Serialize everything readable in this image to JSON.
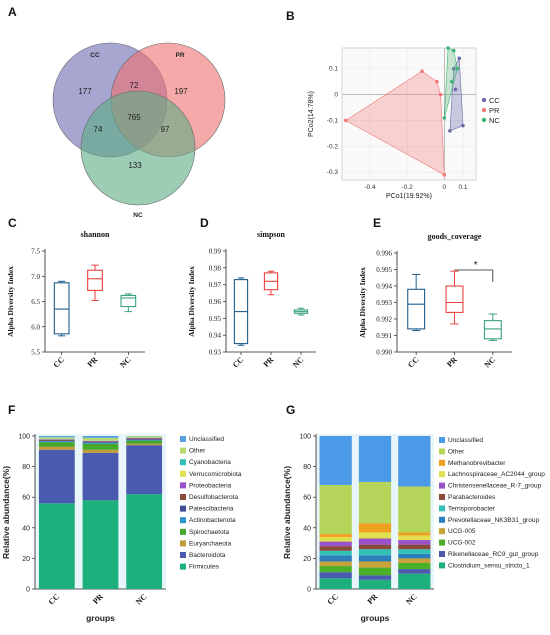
{
  "panel_labels": [
    "A",
    "B",
    "C",
    "D",
    "E",
    "F",
    "G"
  ],
  "chart_data": [
    {
      "type": "venn",
      "panel": "A",
      "sets": [
        {
          "name": "CC",
          "color": "#6b6bb0"
        },
        {
          "name": "PR",
          "color": "#f07070"
        },
        {
          "name": "NC",
          "color": "#5cae84"
        }
      ],
      "regions": {
        "CC_only": "177",
        "PR_only": "197",
        "NC_only": "133",
        "CC_PR": "72",
        "CC_NC": "74",
        "PR_NC": "97",
        "CC_PR_NC": "765"
      }
    },
    {
      "type": "scatter",
      "panel": "B",
      "xlabel": "PCo1(19.92%)",
      "ylabel": "PCo2(14.78%)",
      "xlim": [
        -0.55,
        0.17
      ],
      "ylim": [
        -0.33,
        0.18
      ],
      "xticks": [
        "-0.4",
        "-0.2",
        "0",
        "0.1"
      ],
      "xtick_values": [
        -0.4,
        -0.2,
        0,
        0.1
      ],
      "yticks": [
        "0.1",
        "0",
        "-0.1",
        "-0.2",
        "-0.3"
      ],
      "ytick_values": [
        0.1,
        0,
        -0.1,
        -0.2,
        -0.3
      ],
      "series": [
        {
          "name": "CC",
          "color": "#6a6aa8",
          "fill": "#6a6aa8",
          "points": [
            [
              0.03,
              -0.14
            ],
            [
              0.1,
              -0.12
            ],
            [
              0.08,
              0.14
            ],
            [
              0.06,
              0.02
            ],
            [
              0.05,
              0.1
            ]
          ]
        },
        {
          "name": "PR",
          "color": "#f07878",
          "fill": "#f08080",
          "points": [
            [
              -0.53,
              -0.1
            ],
            [
              -0.12,
              0.09
            ],
            [
              -0.04,
              0.05
            ],
            [
              -0.02,
              0.0
            ],
            [
              0.0,
              -0.31
            ]
          ]
        },
        {
          "name": "NC",
          "color": "#3cb371",
          "fill": "#66bb88",
          "points": [
            [
              0.02,
              0.18
            ],
            [
              0.05,
              0.17
            ],
            [
              0.0,
              -0.09
            ],
            [
              0.07,
              0.1
            ],
            [
              0.04,
              0.05
            ]
          ]
        }
      ]
    },
    {
      "type": "box",
      "panel": "C",
      "title": "shannon",
      "ylabel": "Alpha Diversity Index",
      "ylim": [
        5.5,
        7.5
      ],
      "yticks": [
        "5.5",
        "6.0",
        "6.5",
        "7.0",
        "7.5"
      ],
      "ytick_values": [
        5.5,
        6.0,
        6.5,
        7.0,
        7.5
      ],
      "categories": [
        "CC",
        "PR",
        "NC"
      ],
      "boxes": [
        {
          "name": "CC",
          "color": "#1f5f8b",
          "min": 5.82,
          "q1": 5.86,
          "median": 6.35,
          "q3": 6.87,
          "max": 6.9
        },
        {
          "name": "PR",
          "color": "#e84040",
          "min": 6.52,
          "q1": 6.72,
          "median": 6.95,
          "q3": 7.12,
          "max": 7.22
        },
        {
          "name": "NC",
          "color": "#3aa37a",
          "min": 6.3,
          "q1": 6.4,
          "median": 6.57,
          "q3": 6.62,
          "max": 6.65
        }
      ]
    },
    {
      "type": "box",
      "panel": "D",
      "title": "simpson",
      "ylabel": "Alpha Diversity Index",
      "ylim": [
        0.93,
        0.99
      ],
      "yticks": [
        "0.93",
        "0.94",
        "0.95",
        "0.96",
        "0.97",
        "0.98",
        "0.99"
      ],
      "ytick_values": [
        0.93,
        0.94,
        0.95,
        0.96,
        0.97,
        0.98,
        0.99
      ],
      "categories": [
        "CC",
        "PR",
        "NC"
      ],
      "boxes": [
        {
          "name": "CC",
          "color": "#1f5f8b",
          "min": 0.934,
          "q1": 0.935,
          "median": 0.954,
          "q3": 0.973,
          "max": 0.974
        },
        {
          "name": "PR",
          "color": "#e84040",
          "min": 0.964,
          "q1": 0.967,
          "median": 0.972,
          "q3": 0.977,
          "max": 0.978
        },
        {
          "name": "NC",
          "color": "#3aa37a",
          "min": 0.952,
          "q1": 0.953,
          "median": 0.954,
          "q3": 0.955,
          "max": 0.956
        }
      ]
    },
    {
      "type": "box",
      "panel": "E",
      "title": "goods_coverage",
      "ylabel": "Alpha Diversity Index",
      "ylim": [
        0.99,
        0.996
      ],
      "yticks": [
        "0.990",
        "0.991",
        "0.992",
        "0.993",
        "0.994",
        "0.995",
        "0.996"
      ],
      "ytick_values": [
        0.99,
        0.991,
        0.992,
        0.993,
        0.994,
        0.995,
        0.996
      ],
      "categories": [
        "CC",
        "PR",
        "NC"
      ],
      "boxes": [
        {
          "name": "CC",
          "color": "#1f5f8b",
          "min": 0.9913,
          "q1": 0.9914,
          "median": 0.9929,
          "q3": 0.9938,
          "max": 0.9947
        },
        {
          "name": "PR",
          "color": "#e84040",
          "min": 0.9917,
          "q1": 0.9924,
          "median": 0.993,
          "q3": 0.994,
          "max": 0.9949
        },
        {
          "name": "NC",
          "color": "#3aa37a",
          "min": 0.9907,
          "q1": 0.9908,
          "median": 0.9914,
          "q3": 0.9919,
          "max": 0.9923
        }
      ],
      "annotation": "*"
    },
    {
      "type": "stacked-bar",
      "panel": "F",
      "xlabel": "groups",
      "ylabel": "Relative abundance(%)",
      "ylim": [
        0,
        100
      ],
      "yticks": [
        "0",
        "20",
        "40",
        "60",
        "80",
        "100"
      ],
      "ytick_values": [
        0,
        20,
        40,
        60,
        80,
        100
      ],
      "categories": [
        "CC",
        "PR",
        "NC"
      ],
      "series": [
        {
          "name": "Firmicutes",
          "color": "#1db07d",
          "values": [
            56,
            58,
            62
          ]
        },
        {
          "name": "Bacteroidota",
          "color": "#4a5aae",
          "values": [
            35,
            31,
            32
          ]
        },
        {
          "name": "Euryarchaeota",
          "color": "#c19a3a",
          "values": [
            2,
            2,
            1
          ]
        },
        {
          "name": "Spirochaetota",
          "color": "#46a82a",
          "values": [
            3,
            4,
            2
          ]
        },
        {
          "name": "Actinobacteriota",
          "color": "#2c95cc",
          "values": [
            0.6,
            0.6,
            0.5
          ]
        },
        {
          "name": "Patescibacteria",
          "color": "#3e4d94",
          "values": [
            0.4,
            0.5,
            0.5
          ]
        },
        {
          "name": "Desulfobacterota",
          "color": "#8b4a3a",
          "values": [
            0.4,
            0.4,
            0.4
          ]
        },
        {
          "name": "Proteobacteria",
          "color": "#9a52c8",
          "values": [
            0.4,
            0.3,
            0.3
          ]
        },
        {
          "name": "Verrucomicrobiota",
          "color": "#e0e050",
          "values": [
            0.2,
            0.2,
            0.3
          ]
        },
        {
          "name": "Cyanobacteria",
          "color": "#33c0b6",
          "values": [
            0.2,
            0.2,
            0.2
          ]
        },
        {
          "name": "Other",
          "color": "#b8d970",
          "values": [
            1.0,
            1.6,
            0.6
          ]
        },
        {
          "name": "Unclassified",
          "color": "#58a0e0",
          "values": [
            0.8,
            1.2,
            0.2
          ]
        }
      ]
    },
    {
      "type": "stacked-bar",
      "panel": "G",
      "xlabel": "groups",
      "ylabel": "Relative abundance(%)",
      "ylim": [
        0,
        100
      ],
      "yticks": [
        "0",
        "20",
        "40",
        "60",
        "80",
        "100"
      ],
      "ytick_values": [
        0,
        20,
        40,
        60,
        80,
        100
      ],
      "categories": [
        "CC",
        "PR",
        "NC"
      ],
      "series": [
        {
          "name": "Clostridium_sensu_stricto_1",
          "color": "#1db07d",
          "values": [
            7,
            6,
            10
          ]
        },
        {
          "name": "Rikenellaceae_RC9_gut_group",
          "color": "#4a5aae",
          "values": [
            4,
            3,
            3
          ]
        },
        {
          "name": "UCG-002",
          "color": "#4caf2a",
          "values": [
            4,
            5,
            4
          ]
        },
        {
          "name": "UCG-005",
          "color": "#c9a23a",
          "values": [
            3,
            4,
            3
          ]
        },
        {
          "name": "Prevotellaceae_NK3B31_group",
          "color": "#2c7ebd",
          "values": [
            4,
            4,
            3
          ]
        },
        {
          "name": "Terrisporobacter",
          "color": "#33c0b6",
          "values": [
            3,
            4,
            3
          ]
        },
        {
          "name": "Parabacteroides",
          "color": "#8b4a3a",
          "values": [
            3,
            3,
            3
          ]
        },
        {
          "name": "Christensenellaceae_R-7_group",
          "color": "#9a52c8",
          "values": [
            3,
            4,
            3
          ]
        },
        {
          "name": "Lachnospiraceae_AC2044_group",
          "color": "#e0e050",
          "values": [
            3,
            4,
            3
          ]
        },
        {
          "name": "Methanobrevibacter",
          "color": "#f0a020",
          "values": [
            2,
            6,
            2
          ]
        },
        {
          "name": "Other",
          "color": "#b5d45a",
          "values": [
            32,
            27,
            30
          ]
        },
        {
          "name": "Unclassified",
          "color": "#4a9ae8",
          "values": [
            32,
            30,
            33
          ]
        }
      ]
    }
  ]
}
